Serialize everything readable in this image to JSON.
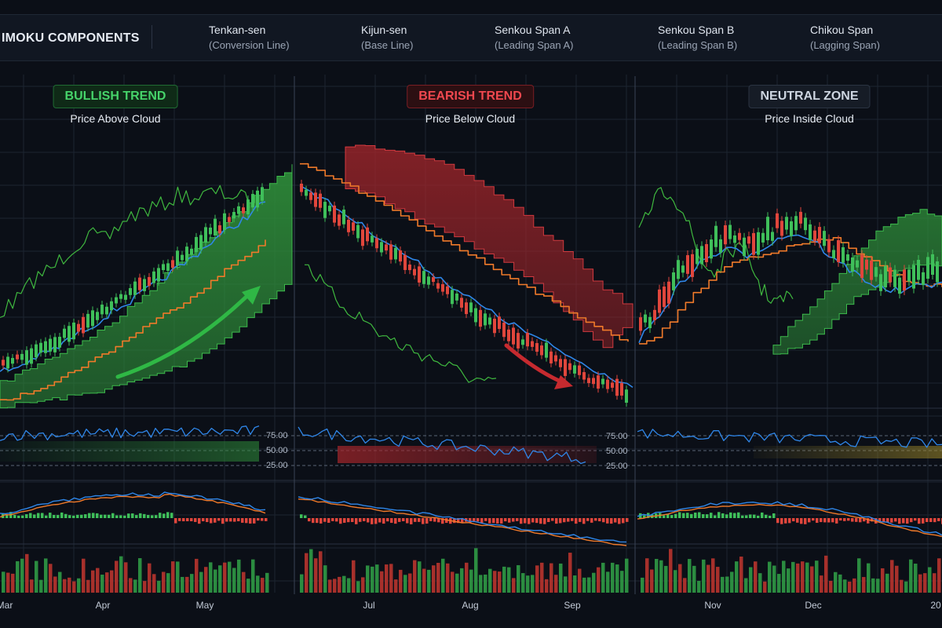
{
  "legend": {
    "title": "IMOKU COMPONENTS",
    "items": [
      {
        "name": "Tenkan-sen",
        "sub": "(Conversion Line)",
        "color": "#2f86e8",
        "kind": "line",
        "id": "tenkan"
      },
      {
        "name": "Kijun-sen",
        "sub": "(Base Line)",
        "color": "#f07a2a",
        "kind": "line",
        "id": "kijun"
      },
      {
        "name": "Senkou Span A",
        "sub": "(Leading Span A)",
        "color": "#2f9a3c",
        "kind": "cloud",
        "id": "span-a"
      },
      {
        "name": "Senkou Span B",
        "sub": "(Leading Span B)",
        "color": "#b3272c",
        "kind": "cloud",
        "id": "span-b"
      },
      {
        "name": "Chikou Span",
        "sub": "(Lagging Span)",
        "color": "#3fb83f",
        "kind": "line",
        "id": "chikou"
      }
    ]
  },
  "colors": {
    "up": "#3fbf5a",
    "down": "#e0463c",
    "tenkan": "#2f86e8",
    "kijun": "#f07a2a",
    "chikou": "#3fb83f",
    "bull_cloud": "#2f8f3a",
    "bear_cloud": "#a8262b",
    "neutral_cloud": "#8a7a2a",
    "grid": "#1c2430"
  },
  "panels": [
    {
      "id": "bullish",
      "badge": "BULLISH TREND",
      "subtitle": "Price Above Cloud",
      "style": "bull"
    },
    {
      "id": "bearish",
      "badge": "BEARISH TREND",
      "subtitle": "Price Below Cloud",
      "style": "bear"
    },
    {
      "id": "neutral",
      "badge": "NEUTRAL ZONE",
      "subtitle": "Price Inside Cloud",
      "style": "neu"
    }
  ],
  "x_axis": {
    "labels": [
      "Mar",
      "Apr",
      "May",
      "Jul",
      "Aug",
      "Sep",
      "Nov",
      "Dec",
      "20"
    ]
  },
  "rsi": {
    "ticks": [
      "75.00",
      "50.00",
      "25.00"
    ]
  },
  "chart_data": [
    {
      "type": "line",
      "panel": "bullish",
      "description_series": [
        {
          "name": "Tenkan-sen",
          "values": [
            0.18,
            0.2,
            0.24,
            0.27,
            0.32,
            0.36,
            0.41,
            0.45,
            0.5,
            0.55,
            0.6,
            0.66,
            0.71,
            0.76,
            0.82
          ]
        },
        {
          "name": "Kijun-sen",
          "values": [
            0.1,
            0.12,
            0.15,
            0.18,
            0.22,
            0.26,
            0.3,
            0.35,
            0.4,
            0.44,
            0.49,
            0.54,
            0.6,
            0.65,
            0.7
          ]
        },
        {
          "name": "Chikou Span",
          "values": [
            0.55,
            0.6,
            0.68,
            0.72,
            0.79,
            0.84,
            0.82,
            0.9,
            0.93,
            0.95,
            0.99,
            0.98,
            1.0,
            0.99,
            0.97
          ]
        }
      ]
    },
    {
      "type": "line",
      "panel": "bearish",
      "description_series": [
        {
          "name": "Tenkan-sen",
          "values": [
            0.9,
            0.84,
            0.78,
            0.72,
            0.66,
            0.6,
            0.54,
            0.48,
            0.42,
            0.37,
            0.32,
            0.27,
            0.22,
            0.18,
            0.14
          ]
        },
        {
          "name": "Kijun-sen",
          "values": [
            0.93,
            0.89,
            0.85,
            0.8,
            0.75,
            0.7,
            0.65,
            0.6,
            0.55,
            0.5,
            0.45,
            0.4,
            0.35,
            0.3,
            0.26
          ]
        },
        {
          "name": "Chikou Span",
          "values": [
            0.6,
            0.5,
            0.43,
            0.38,
            0.32,
            0.28,
            0.25,
            0.22,
            0.18,
            0.15,
            0.13
          ]
        }
      ]
    },
    {
      "type": "line",
      "panel": "neutral",
      "description_series": [
        {
          "name": "Tenkan-sen",
          "values": [
            0.3,
            0.4,
            0.52,
            0.6,
            0.64,
            0.62,
            0.66,
            0.7,
            0.68,
            0.6,
            0.55,
            0.5,
            0.48,
            0.5,
            0.52
          ]
        },
        {
          "name": "Kijun-sen",
          "values": [
            0.25,
            0.3,
            0.4,
            0.48,
            0.55,
            0.58,
            0.6,
            0.62,
            0.64,
            0.65,
            0.6,
            0.55,
            0.5,
            0.48,
            0.47
          ]
        },
        {
          "name": "Chikou Span",
          "values": [
            0.65,
            0.78,
            0.82,
            0.72,
            0.55,
            0.5,
            0.6,
            0.58,
            0.44,
            0.4,
            0.42
          ]
        }
      ]
    }
  ]
}
